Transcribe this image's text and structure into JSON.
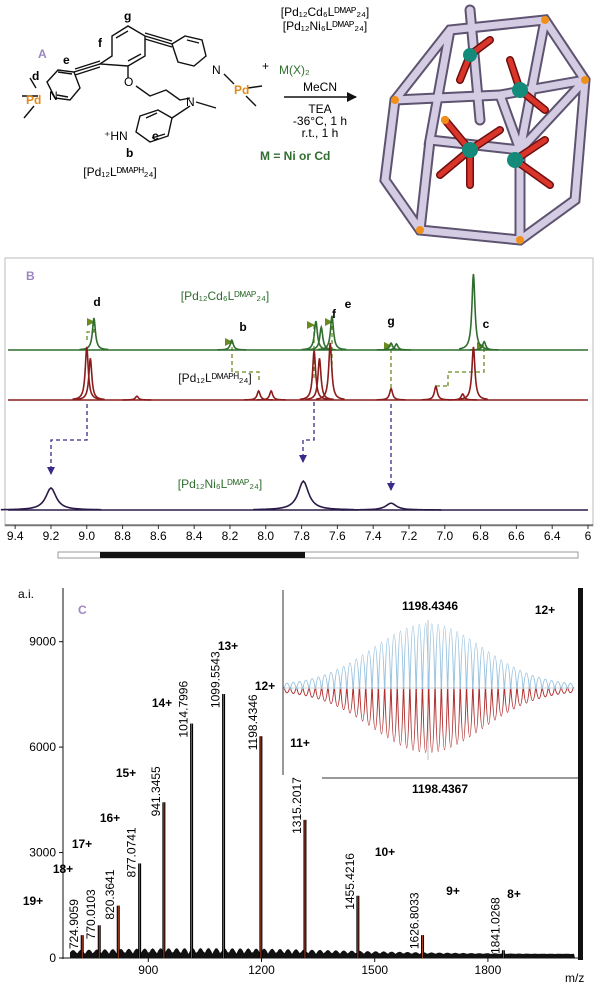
{
  "scheme": {
    "panel": "A",
    "ligand": "[Pd₁₂Lᴰᴹᴬᴾᴴ₂₄]",
    "products": [
      "[Pd₁₂Cd₆Lᴰᴹᴬᴾ₂₄]",
      "[Pd₁₂Ni₆Lᴰᴹᴬᴾ₂₄]"
    ],
    "plus": "+",
    "reagent": "M(X)₂",
    "solvent": "MeCN",
    "conditions": [
      "TEA",
      "-36°C, 1 h",
      "r.t., 1 h"
    ],
    "metal_note": "M = Ni or Cd",
    "proton_labels": [
      "d",
      "e",
      "f",
      "g",
      "b",
      "c"
    ],
    "atoms": [
      "Pd",
      "N",
      "O",
      "N",
      "⁺HN",
      "N",
      "Pd"
    ]
  },
  "chart_data": [
    {
      "type": "spectrum",
      "panel": "B",
      "xlim": [
        9.44,
        6.2
      ],
      "xticks": [
        9.4,
        9.2,
        {
          "value": 9,
          "label": "9.0"
        },
        8.8,
        8.6,
        8.4,
        8.2,
        {
          "value": 8,
          "label": "8.0"
        },
        7.8,
        7.6,
        7.4,
        7.2,
        {
          "value": 7,
          "label": "7.0"
        },
        6.8,
        6.6,
        6.4,
        {
          "value": 6.2,
          "label": "6"
        }
      ],
      "peak_labels": [
        "d",
        "b",
        "f",
        "e",
        "g",
        "c"
      ],
      "series": [
        {
          "name": "[Pd₁₂Cd₆Lᴰᴹᴬᴾ₂₄]",
          "color": "#2f6e2f",
          "broad": false,
          "x": [
            8.96,
            8.19,
            7.72,
            7.69,
            7.63,
            7.3,
            7.27,
            6.84,
            6.78
          ],
          "values": [
            42,
            13,
            38,
            30,
            45,
            9,
            8,
            100,
            11
          ]
        },
        {
          "name": "[Pd₁₂Lᴰᴹᴬᴾᴴ₂₄]",
          "color": "#8c1c1c",
          "broad": false,
          "x": [
            9.0,
            8.98,
            8.72,
            8.04,
            7.97,
            7.73,
            7.7,
            7.64,
            7.3,
            7.05,
            6.9,
            6.84
          ],
          "values": [
            70,
            55,
            5,
            12,
            12,
            65,
            55,
            75,
            15,
            18,
            8,
            70
          ]
        },
        {
          "name": "[Pd₁₂Ni₆Lᴰᴹᴬᴾ₂₄]",
          "color": "#2a1a48",
          "broad": true,
          "x": [
            9.2,
            7.79,
            7.3
          ],
          "values": [
            29,
            38,
            9
          ]
        }
      ]
    },
    {
      "type": "stick",
      "panel": "C",
      "xlabel": "m/z",
      "ylabel": "a.i.",
      "color": "#000000",
      "peak_color": "#e0502a",
      "xlim": [
        674,
        2052
      ],
      "ylim": [
        0,
        10300
      ],
      "xticks": [
        900,
        1200,
        1500,
        1800
      ],
      "yticks": [
        0,
        3000,
        6000,
        9000
      ],
      "x": [
        724.9059,
        770.0103,
        820.3641,
        877.0741,
        941.3455,
        1014.7996,
        1099.5543,
        1198.4346,
        1315.2017,
        1455.4216,
        1626.8033,
        1841.0268
      ],
      "values": [
        650,
        930,
        1490,
        2690,
        4430,
        6670,
        7510,
        6310,
        3930,
        1770,
        650,
        220
      ],
      "charges": [
        "19+",
        "18+",
        "17+",
        "16+",
        "15+",
        "14+",
        "13+",
        "12+",
        "11+",
        "10+",
        "9+",
        "8+"
      ],
      "inset": {
        "experimental": 1198.4346,
        "simulated": 1198.4367,
        "charge": "12+"
      }
    }
  ]
}
